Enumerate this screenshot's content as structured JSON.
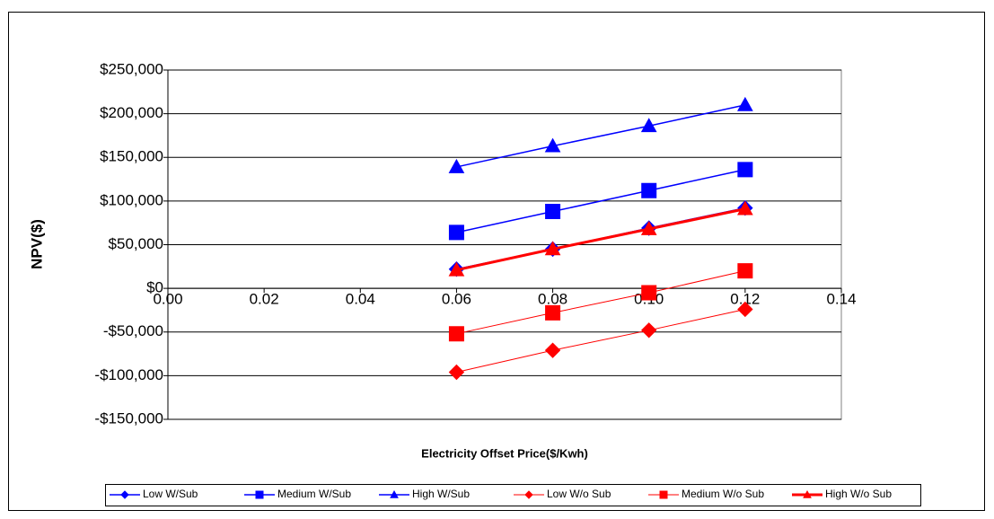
{
  "chart_data": {
    "type": "line",
    "y_label": "NPV($)",
    "x_label": "Electricity Offset Price($/Kwh)",
    "x": [
      0.06,
      0.08,
      0.1,
      0.12
    ],
    "series": [
      {
        "name": "Low W/Sub",
        "color": "#0000ff",
        "marker": "diamond",
        "line_width": 1.5,
        "values": [
          22000,
          45000,
          69000,
          92000
        ]
      },
      {
        "name": "Medium W/Sub",
        "color": "#0000ff",
        "marker": "square",
        "line_width": 1.5,
        "values": [
          64000,
          88000,
          112000,
          136000
        ]
      },
      {
        "name": "High W/Sub",
        "color": "#0000ff",
        "marker": "triangle",
        "line_width": 1.5,
        "values": [
          139000,
          163000,
          186000,
          210000
        ]
      },
      {
        "name": "Low W/o Sub",
        "color": "#ff0000",
        "marker": "diamond",
        "line_width": 1,
        "values": [
          -96000,
          -71000,
          -48000,
          -24000
        ]
      },
      {
        "name": "Medium W/o Sub",
        "color": "#ff0000",
        "marker": "square",
        "line_width": 1,
        "values": [
          -52000,
          -28000,
          -5000,
          20000
        ]
      },
      {
        "name": "High W/o Sub",
        "color": "#ff0000",
        "marker": "triangle",
        "line_width": 3,
        "values": [
          21000,
          45000,
          68000,
          91000
        ]
      }
    ],
    "xlim": [
      0,
      0.14
    ],
    "xticks": [
      {
        "value": 0,
        "label": "0.00"
      },
      0.02,
      0.04,
      0.06,
      0.08,
      {
        "value": 0.1,
        "label": "0.10"
      },
      0.12,
      0.14
    ],
    "ylim": [
      -150000,
      250000
    ],
    "yticks": [
      {
        "value": -150000,
        "label": "-$150,000"
      },
      {
        "value": -100000,
        "label": "-$100,000"
      },
      {
        "value": -50000,
        "label": "-$50,000"
      },
      {
        "value": 0,
        "label": "$0"
      },
      {
        "value": 50000,
        "label": "$50,000"
      },
      {
        "value": 100000,
        "label": "$100,000"
      },
      {
        "value": 150000,
        "label": "$150,000"
      },
      {
        "value": 200000,
        "label": "$200,000"
      },
      {
        "value": 250000,
        "label": "$250,000"
      }
    ],
    "grid": true,
    "legend": "bottom"
  }
}
